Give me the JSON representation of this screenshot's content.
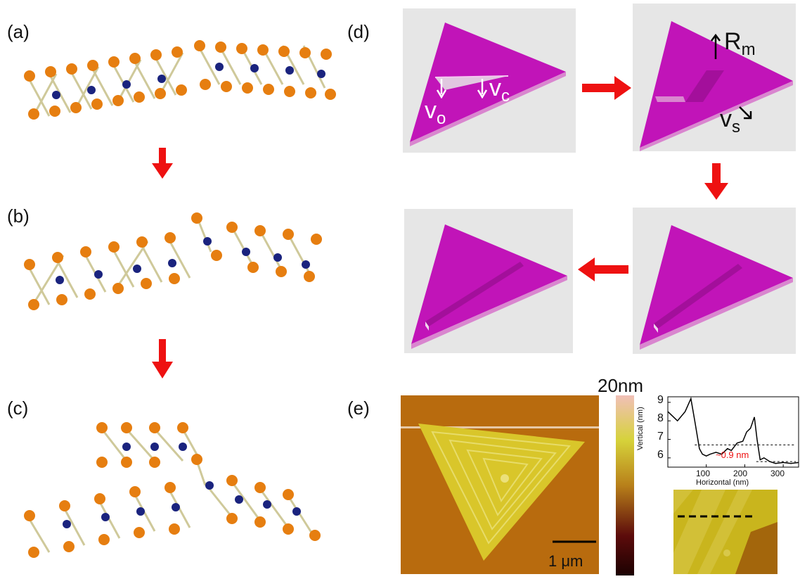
{
  "panels": {
    "a": "(a)",
    "b": "(b)",
    "c": "(c)",
    "d": "(d)",
    "e": "(e)"
  },
  "d_annotations": {
    "v_o_main": "v",
    "v_o_sub": "o",
    "v_c_main": "v",
    "v_c_sub": "c",
    "R_m_main": "R",
    "R_m_sub": "m",
    "v_s_main": "v",
    "v_s_sub": "s"
  },
  "afm": {
    "colorbar_max": "20nm",
    "scale_bar": "1 μm"
  },
  "profile": {
    "xlabel": "Horizontal (nm)",
    "ylabel": "Vertical (nm)",
    "step_label": "~0.9 nm",
    "x_ticks": [
      "100",
      "200",
      "300"
    ],
    "y_ticks": [
      "9",
      "8",
      "7",
      "6"
    ]
  },
  "chart_data": {
    "type": "line",
    "title": "",
    "xlabel": "Horizontal (nm)",
    "ylabel": "Vertical (nm)",
    "xlim": [
      0,
      340
    ],
    "ylim": [
      5.5,
      9.3
    ],
    "x": [
      0,
      10,
      25,
      45,
      60,
      70,
      82,
      90,
      100,
      110,
      125,
      140,
      155,
      165,
      180,
      195,
      205,
      215,
      225,
      232,
      240,
      250,
      265,
      280,
      300,
      320,
      340
    ],
    "y": [
      8.5,
      8.3,
      8.0,
      8.5,
      9.2,
      8.0,
      6.5,
      6.2,
      6.1,
      6.2,
      6.3,
      6.2,
      6.5,
      6.4,
      6.8,
      6.9,
      7.4,
      7.6,
      8.2,
      7.0,
      5.9,
      6.0,
      5.8,
      5.7,
      5.75,
      5.7,
      5.75
    ],
    "reference_lines": [
      6.7,
      5.8
    ],
    "annotations": [
      "~0.9 nm"
    ]
  },
  "colors": {
    "arrow": "#ee1111",
    "magenta": "#c114b8",
    "sulfur": "#e67e10",
    "metal": "#1a237e",
    "bond": "#cfc99a"
  }
}
